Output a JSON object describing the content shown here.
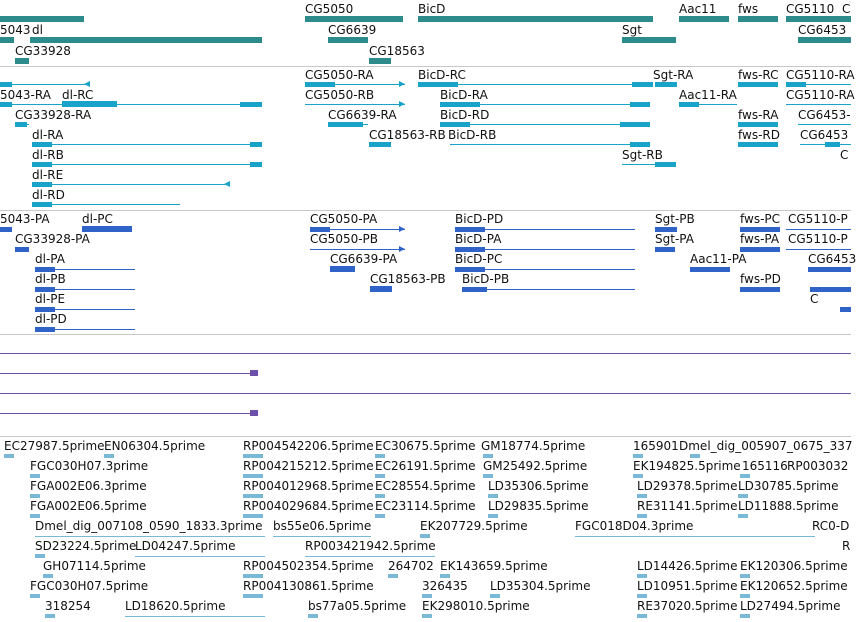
{
  "colors": {
    "gene": "#2e8b8b",
    "mrna": "#1aa3c8",
    "cds": "#2f63c8",
    "purple": "#6b4fa8",
    "est": "#7ab8d8"
  },
  "track_gene": {
    "labels": [
      "CG5050",
      "BicD",
      "Aac11",
      "fws",
      "CG5110",
      "5043",
      "dl",
      "CG6639",
      "Sgt",
      "CG6453",
      "CG33928",
      "CG18563",
      "C"
    ]
  },
  "track_mrna": {
    "labels": [
      "CG5050-RA",
      "BicD-RC",
      "Sgt-RA",
      "fws-RC",
      "CG5110-RA",
      "5043-RA",
      "dl-RC",
      "CG5050-RB",
      "BicD-RA",
      "Aac11-RA",
      "CG5110-RA",
      "CG33928-RA",
      "CG6639-RA",
      "BicD-RD",
      "fws-RA",
      "CG6453-",
      "CG18563-RB",
      "BicD-RB",
      "fws-RD",
      "CG6453",
      "dl-RA",
      "dl-RB",
      "Sgt-RB",
      "C",
      "dl-RE",
      "dl-RD"
    ]
  },
  "track_cds": {
    "labels": [
      "5043-PA",
      "dl-PC",
      "CG5050-PA",
      "BicD-PD",
      "Sgt-PB",
      "fws-PC",
      "CG5110-P",
      "CG33928-PA",
      "CG5050-PB",
      "BicD-PA",
      "Sgt-PA",
      "fws-PA",
      "CG5110-P",
      "dl-PA",
      "CG6639-PA",
      "BicD-PC",
      "Aac11-PA",
      "CG6453",
      "dl-PB",
      "CG18563-PB",
      "BicD-PB",
      "fws-PD",
      "C",
      "dl-PE",
      "dl-PD"
    ]
  },
  "track_est": {
    "labels": [
      "EC27987.5prime",
      "EN06304.5prime",
      "RP004542206.5prime",
      "EC30675.5prime",
      "GM18774.5prime",
      "165901",
      "Dmel_dig_005907_0675_337",
      "FGC030H07.3prime",
      "RP004215212.5prime",
      "EC26191.5prime",
      "GM25492.5prime",
      "EK194825.5prime",
      "165116",
      "RP003032",
      "FGA002E06.3prime",
      "RP004012968.5prime",
      "EC28554.5prime",
      "LD35306.5prime",
      "LD29378.5prime",
      "LD30785.5prime",
      "FGA002E06.5prime",
      "RP004029684.5prime",
      "EC23114.5prime",
      "LD29835.5prime",
      "RE31141.5prime",
      "LD11888.5prime",
      "Dmel_dig_007108_0590_1833.3prime",
      "bs55e06.5prime",
      "EK207729.5prime",
      "FGC018D04.3prime",
      "RC0-D",
      "SD23224.5prime",
      "LD04247.5prime",
      "RP003421942.5prime",
      "R",
      "GH07114.5prime",
      "RP004502354.5prime",
      "264702",
      "EK143659.5prime",
      "LD14426.5prime",
      "EK120306.5prime",
      "FGC030H07.5prime",
      "RP004130861.5prime",
      "326435",
      "LD35304.5prime",
      "LD10951.5prime",
      "EK120652.5prime",
      "318254",
      "LD18620.5prime",
      "bs77a05.5prime",
      "EK298010.5prime",
      "RE37020.5prime",
      "LD27494.5prime"
    ]
  }
}
